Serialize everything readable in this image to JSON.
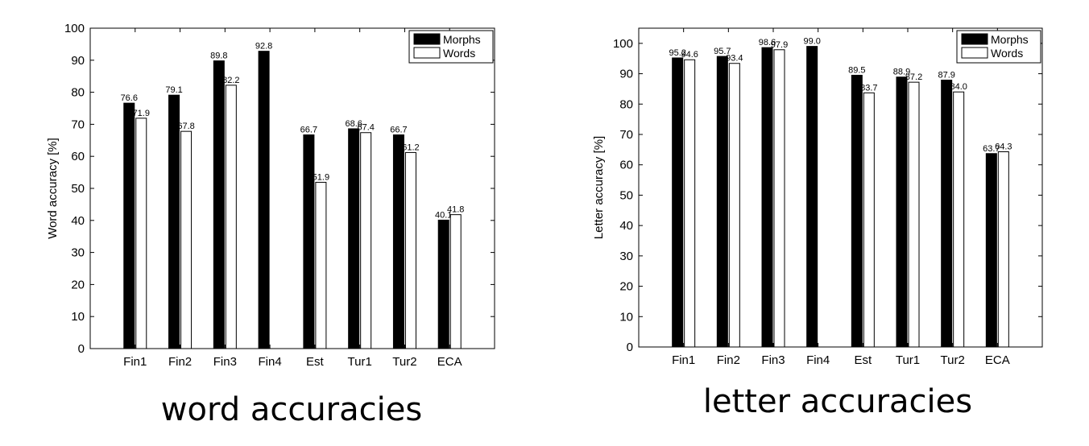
{
  "chart_data": [
    {
      "type": "bar",
      "caption": "word accuracies",
      "ylabel": "Word accuracy [%]",
      "ylim": [
        0,
        100
      ],
      "yticks": [
        0,
        10,
        20,
        30,
        40,
        50,
        60,
        70,
        80,
        90,
        100
      ],
      "categories": [
        "Fin1",
        "Fin2",
        "Fin3",
        "Fin4",
        "Est",
        "Tur1",
        "Tur2",
        "ECA"
      ],
      "series": [
        {
          "name": "Morphs",
          "color": "#000000",
          "values": [
            76.6,
            79.1,
            89.8,
            92.8,
            66.7,
            68.6,
            66.7,
            40.1
          ]
        },
        {
          "name": "Words",
          "color": "#ffffff",
          "values": [
            71.9,
            67.8,
            82.2,
            null,
            51.9,
            67.4,
            61.2,
            41.8
          ]
        }
      ],
      "legend": "top-right",
      "grid": false
    },
    {
      "type": "bar",
      "caption": "letter accuracies",
      "ylabel": "Letter accuracy [%]",
      "ylim": [
        0,
        105
      ],
      "yticks": [
        0,
        10,
        20,
        30,
        40,
        50,
        60,
        70,
        80,
        90,
        100
      ],
      "categories": [
        "Fin1",
        "Fin2",
        "Fin3",
        "Fin4",
        "Est",
        "Tur1",
        "Tur2",
        "ECA"
      ],
      "series": [
        {
          "name": "Morphs",
          "color": "#000000",
          "values": [
            95.2,
            95.7,
            98.6,
            99.0,
            89.5,
            88.9,
            87.9,
            63.7
          ]
        },
        {
          "name": "Words",
          "color": "#ffffff",
          "values": [
            94.6,
            93.4,
            97.9,
            null,
            83.7,
            87.2,
            84.0,
            64.3
          ]
        }
      ],
      "legend": "top-right",
      "grid": false
    }
  ]
}
